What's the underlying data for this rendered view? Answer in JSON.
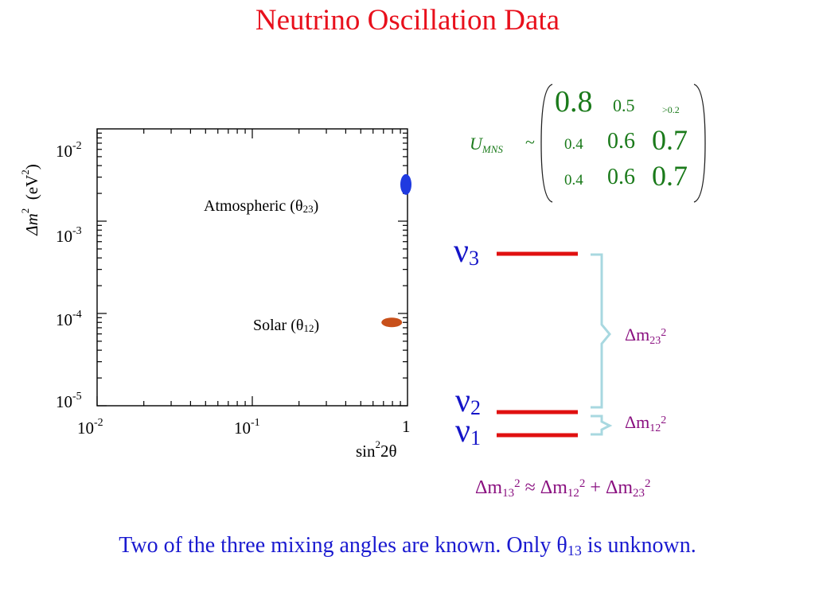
{
  "title": "Neutrino Oscillation Data",
  "plot": {
    "ylabel_main": "Δm",
    "ylabel_sup": "2",
    "ylabel_unit": "(eV",
    "ylabel_unit_sup": "2",
    "ylabel_close": ")",
    "xlabel_main": "sin",
    "xlabel_sup": "2",
    "xlabel_rest": "2θ",
    "y_ticks": [
      {
        "base": "10",
        "exp": "-2"
      },
      {
        "base": "10",
        "exp": "-3"
      },
      {
        "base": "10",
        "exp": "-4"
      },
      {
        "base": "10",
        "exp": "-5"
      }
    ],
    "x_ticks": [
      {
        "base": "10",
        "exp": "-2"
      },
      {
        "base": "10",
        "exp": "-1"
      },
      {
        "base": "1",
        "exp": ""
      }
    ],
    "atmospheric_label": "Atmospheric (θ",
    "atmospheric_sub": "23",
    "atmospheric_close": ")",
    "solar_label": "Solar (θ",
    "solar_sub": "12",
    "solar_close": ")",
    "colors": {
      "atmospheric": "#1f3ae0",
      "solar": "#c8501a"
    }
  },
  "matrix": {
    "label": "U",
    "label_sub": "MNS",
    "tilde": "~",
    "rows": [
      [
        "0.8",
        "0.5",
        ">0.2"
      ],
      [
        "0.4",
        "0.6",
        "0.7"
      ],
      [
        "0.4",
        "0.6",
        "0.7"
      ]
    ]
  },
  "levels": {
    "nu_symbol": "ν",
    "nu3_sub": "3",
    "nu2_sub": "2",
    "nu1_sub": "1",
    "dm23": {
      "delta": "Δm",
      "sub": "23",
      "sup": "2"
    },
    "dm12": {
      "delta": "Δm",
      "sub": "12",
      "sup": "2"
    },
    "line_color": "#e01010",
    "bracket_color": "#a8d8e0"
  },
  "relation": {
    "lhs": "Δm",
    "lhs_sub": "13",
    "lhs_sup": "2",
    "approx": " ≈ ",
    "t1": "Δm",
    "t1_sub": "12",
    "t1_sup": "2",
    "plus": " + ",
    "t2": "Δm",
    "t2_sub": "23",
    "t2_sup": "2"
  },
  "footer": {
    "text_a": "Two of the three mixing angles are known.  Only θ",
    "sub": "13",
    "text_b": " is unknown."
  },
  "chart_data": {
    "type": "scatter",
    "x_scale": "log",
    "y_scale": "log",
    "xlim": [
      0.01,
      1
    ],
    "ylim": [
      1e-05,
      0.01
    ],
    "series": [
      {
        "name": "Atmospheric (θ 23)",
        "x": [
          1.0
        ],
        "y": [
          0.0025
        ]
      },
      {
        "name": "Solar (θ 12)",
        "x": [
          0.85
        ],
        "y": [
          8e-05
        ]
      }
    ]
  }
}
